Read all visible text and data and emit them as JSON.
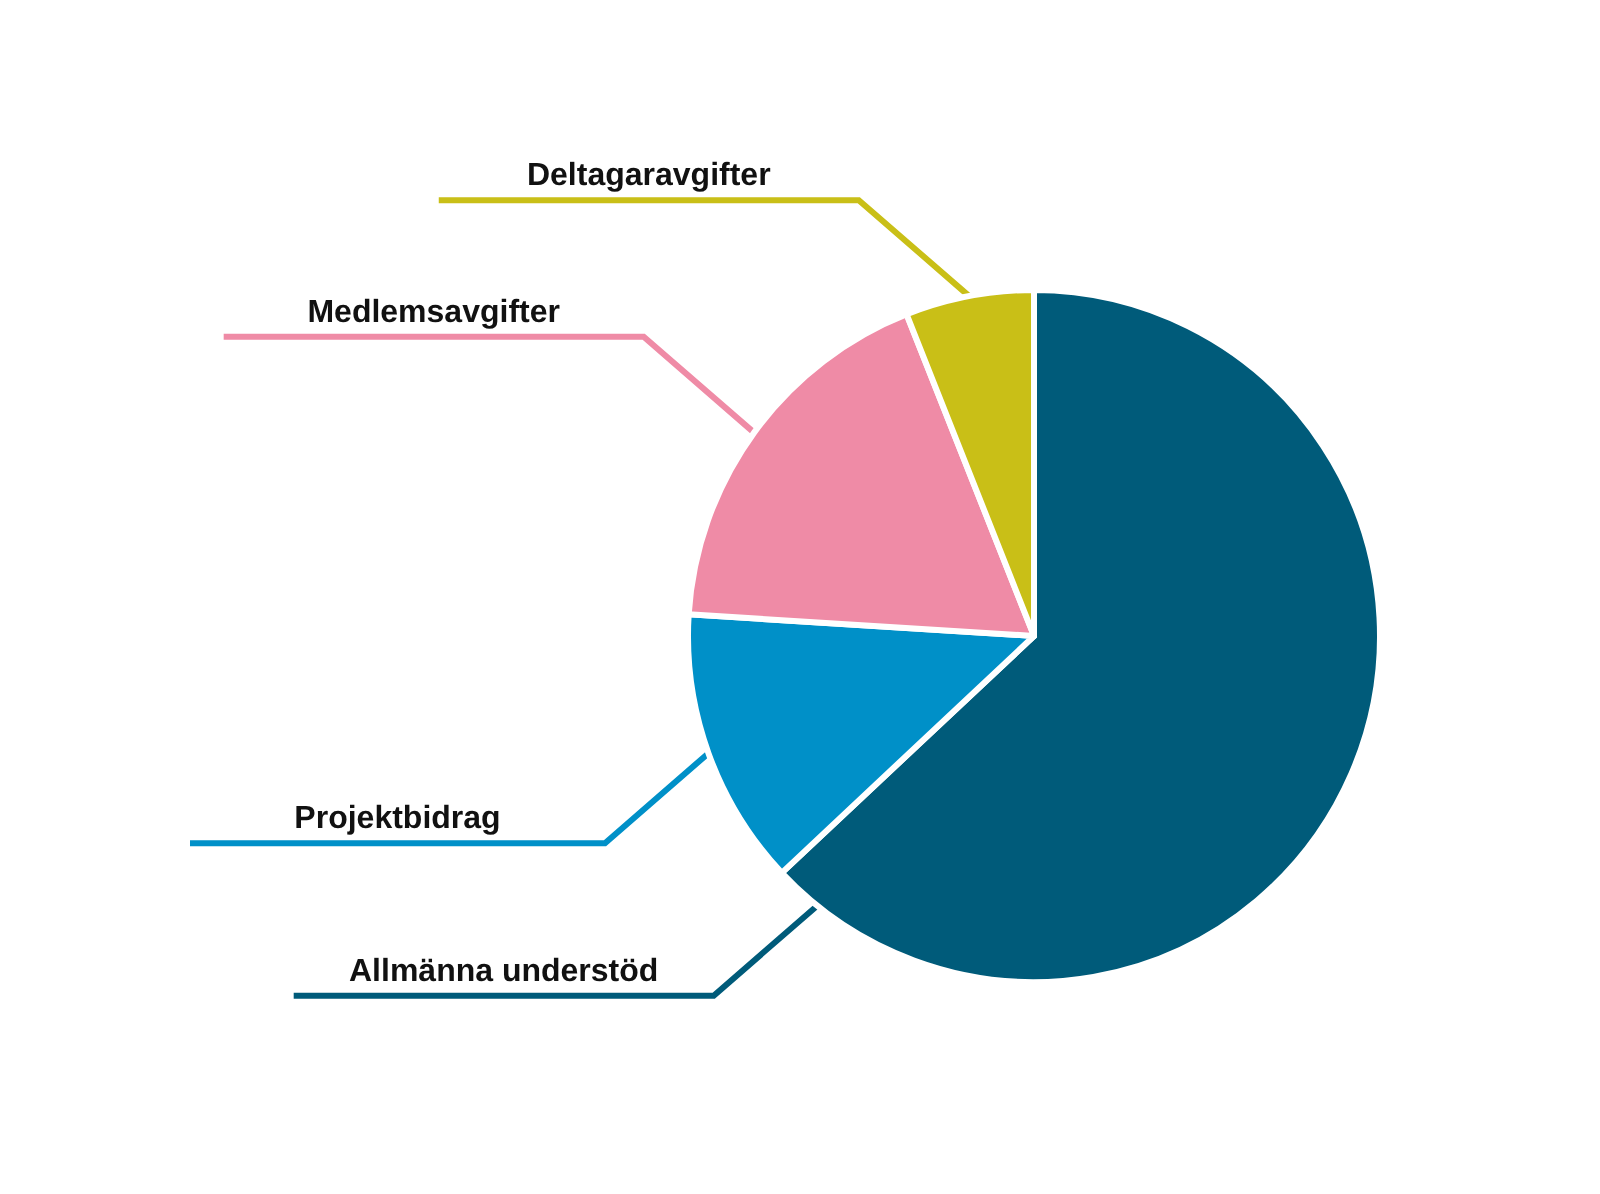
{
  "chart_data": {
    "type": "pie",
    "categories": [
      "Allmänna understöd",
      "Projektbidrag",
      "Medlemsavgifter",
      "Deltagaravgifter"
    ],
    "values": [
      63,
      13,
      18,
      6
    ],
    "colors": [
      "#005b7a",
      "#0090c8",
      "#ef8ba6",
      "#c9bf17"
    ],
    "legend": false
  }
}
